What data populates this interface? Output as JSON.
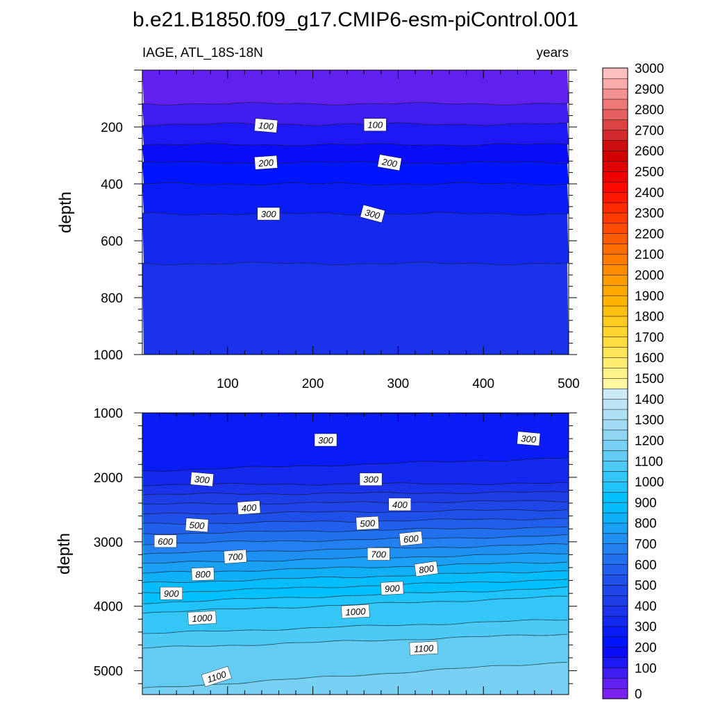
{
  "title": "b.e21.B1850.f09_g17.CMIP6-esm-piControl.001",
  "chart_data": [
    {
      "type": "contour",
      "left_string": "IAGE, ATL_18S-18N",
      "right_string": "years",
      "ylabel": "depth",
      "xlim": [
        0,
        500
      ],
      "ylim": [
        1000,
        0
      ],
      "x_ticks": [
        100,
        200,
        300,
        400,
        500
      ],
      "y_ticks": [
        200,
        400,
        600,
        800,
        1000
      ],
      "levels_depth": [
        {
          "value": 0,
          "depth": 0
        },
        {
          "value": 50,
          "depth": 118
        },
        {
          "value": 100,
          "depth": 190
        },
        {
          "value": 150,
          "depth": 262
        },
        {
          "value": 200,
          "depth": 325
        },
        {
          "value": 250,
          "depth": 400
        },
        {
          "value": 300,
          "depth": 505
        },
        {
          "value": 350,
          "depth": 680
        },
        {
          "value": 400,
          "depth": 1000
        }
      ],
      "contour_labels": [
        {
          "text": "100",
          "x": 145,
          "y": 195,
          "rot": 5
        },
        {
          "text": "100",
          "x": 273,
          "y": 192,
          "rot": 0
        },
        {
          "text": "200",
          "x": 145,
          "y": 325,
          "rot": -4
        },
        {
          "text": "200",
          "x": 290,
          "y": 325,
          "rot": 10
        },
        {
          "text": "300",
          "x": 148,
          "y": 505,
          "rot": 0
        },
        {
          "text": "300",
          "x": 270,
          "y": 505,
          "rot": 15
        }
      ]
    },
    {
      "type": "contour",
      "ylabel": "depth",
      "xlim": [
        0,
        500
      ],
      "ylim": [
        5370,
        1000
      ],
      "y_ticks": [
        1000,
        2000,
        3000,
        4000,
        5000
      ],
      "contour_labels": [
        {
          "text": "300",
          "x": 215,
          "y": 1420,
          "rot": 0
        },
        {
          "text": "300",
          "x": 453,
          "y": 1400,
          "rot": 5
        },
        {
          "text": "300",
          "x": 70,
          "y": 2030,
          "rot": 5
        },
        {
          "text": "300",
          "x": 268,
          "y": 2030,
          "rot": 0
        },
        {
          "text": "400",
          "x": 125,
          "y": 2470,
          "rot": -4
        },
        {
          "text": "400",
          "x": 302,
          "y": 2420,
          "rot": 0
        },
        {
          "text": "500",
          "x": 64,
          "y": 2740,
          "rot": 4
        },
        {
          "text": "500",
          "x": 264,
          "y": 2710,
          "rot": -3
        },
        {
          "text": "600",
          "x": 27,
          "y": 2990,
          "rot": 0
        },
        {
          "text": "600",
          "x": 315,
          "y": 2950,
          "rot": -6
        },
        {
          "text": "700",
          "x": 109,
          "y": 3230,
          "rot": -4
        },
        {
          "text": "700",
          "x": 277,
          "y": 3190,
          "rot": 0
        },
        {
          "text": "800",
          "x": 71,
          "y": 3500,
          "rot": -2
        },
        {
          "text": "800",
          "x": 333,
          "y": 3420,
          "rot": -8
        },
        {
          "text": "900",
          "x": 34,
          "y": 3800,
          "rot": 0
        },
        {
          "text": "900",
          "x": 293,
          "y": 3720,
          "rot": -3
        },
        {
          "text": "1000",
          "x": 70,
          "y": 4180,
          "rot": -3
        },
        {
          "text": "1000",
          "x": 250,
          "y": 4080,
          "rot": -3
        },
        {
          "text": "1100",
          "x": 330,
          "y": 4650,
          "rot": -3
        },
        {
          "text": "1100",
          "x": 87,
          "y": 5090,
          "rot": -18
        }
      ]
    }
  ],
  "colorbar": {
    "labels": [
      "0",
      "100",
      "200",
      "300",
      "400",
      "500",
      "600",
      "700",
      "800",
      "900",
      "1000",
      "1100",
      "1200",
      "1300",
      "1400",
      "1500",
      "1600",
      "1700",
      "1800",
      "1900",
      "2000",
      "2100",
      "2200",
      "2300",
      "2400",
      "2500",
      "2600",
      "2700",
      "2800",
      "2900",
      "3000"
    ],
    "colors": [
      "#7a23f0",
      "#5f20f0",
      "#3f1cf2",
      "#1e18f5",
      "#0a0cfa",
      "#0015ff",
      "#0a1cf5",
      "#1428f0",
      "#1a33ea",
      "#1d3de6",
      "#1e46e8",
      "#1f50ea",
      "#2060ec",
      "#2170ee",
      "#2280f0",
      "#1e90f2",
      "#1aa0f5",
      "#10b0f8",
      "#05bcfc",
      "#00c0ff",
      "#20c4fb",
      "#35c6f8",
      "#4cc9f5",
      "#62ccf3",
      "#78d0f2",
      "#8ed5f1",
      "#a0dbf3",
      "#b0e0f5",
      "#bfe4f6",
      "#cce9f8",
      "#fff8a0",
      "#fff38a",
      "#ffec70",
      "#ffe55a",
      "#ffdd40",
      "#ffd530",
      "#ffcc20",
      "#ffc010",
      "#ffb400",
      "#ffa800",
      "#ff9c00",
      "#ff8c00",
      "#ff7c00",
      "#ff6c00",
      "#ff5c00",
      "#ff4c00",
      "#ff3c00",
      "#ff2a00",
      "#ff1800",
      "#ff0800",
      "#f00000",
      "#e00000",
      "#d00000",
      "#cc0e0e",
      "#d22a2a",
      "#dc4444",
      "#e65e5e",
      "#ee7878",
      "#f49292",
      "#faacac",
      "#ffc0c0"
    ]
  }
}
